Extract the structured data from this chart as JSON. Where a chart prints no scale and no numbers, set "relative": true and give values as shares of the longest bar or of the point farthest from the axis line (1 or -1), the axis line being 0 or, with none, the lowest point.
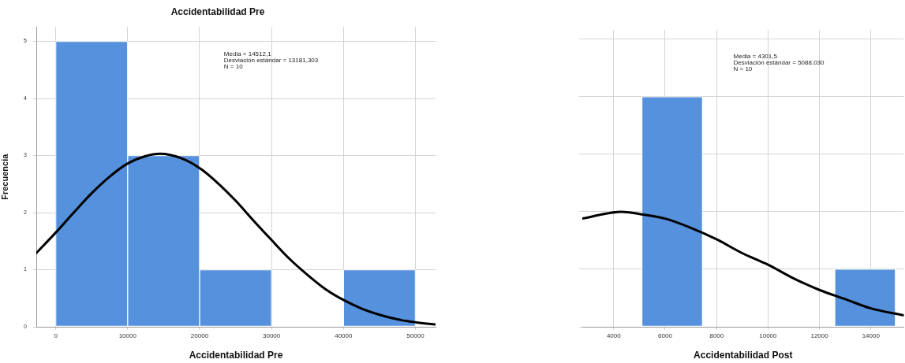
{
  "chart_data": [
    {
      "type": "histogram",
      "title": "Accidentabilidad Pre",
      "xlabel": "Accidentabilidad Pre",
      "ylabel": "Frecuencia",
      "xlim": [
        -2700,
        52800
      ],
      "xticks": [
        0,
        10000,
        20000,
        30000,
        40000,
        50000
      ],
      "ylim": [
        0,
        5.25
      ],
      "yticks": [
        0,
        1,
        2,
        3,
        4,
        5
      ],
      "grid": true,
      "annotations": [
        "Media = 14512,1",
        "Desviación estándar = 13181,303",
        "N = 10"
      ],
      "series": [
        {
          "type": "histogram",
          "bins": [
            0,
            10000,
            20000,
            30000,
            40000,
            50000
          ],
          "values": [
            5,
            3,
            1,
            0,
            1
          ],
          "color": "#5591dc"
        },
        {
          "type": "line",
          "x": [
            -2700,
            0,
            2500,
            5000,
            7500,
            10000,
            12500,
            14500,
            17500,
            20000,
            22500,
            25000,
            27500,
            30000,
            32500,
            35000,
            37500,
            40000,
            42500,
            45000,
            47500,
            50000,
            52800
          ],
          "values": [
            1.29,
            1.65,
            2.0,
            2.34,
            2.63,
            2.86,
            2.99,
            3.03,
            2.95,
            2.78,
            2.52,
            2.21,
            1.86,
            1.52,
            1.19,
            0.91,
            0.66,
            0.47,
            0.32,
            0.21,
            0.13,
            0.08,
            0.04
          ],
          "color": "#000000"
        }
      ]
    },
    {
      "type": "histogram",
      "xlabel": "Accidentabilidad Post",
      "xlim": [
        2780,
        15280
      ],
      "xticks": [
        4000,
        6000,
        8000,
        10000,
        12000,
        14000
      ],
      "relative": true,
      "grid": true,
      "annotations": [
        "Media = 4301,5",
        "Desviación estándar = 5088,030",
        "N = 10"
      ],
      "series": [
        {
          "type": "histogram",
          "bins": [
            5100,
            7450,
            12600,
            14950
          ],
          "values": [
            1,
            0,
            0.25
          ],
          "color": "#5591dc"
        },
        {
          "type": "line",
          "x": [
            2780,
            4300,
            5000,
            6000,
            7000,
            8000,
            9000,
            10000,
            11000,
            12000,
            13000,
            14000,
            15280
          ],
          "values": [
            0.47,
            0.5,
            0.49,
            0.47,
            0.43,
            0.38,
            0.32,
            0.27,
            0.21,
            0.16,
            0.12,
            0.08,
            0.05
          ],
          "color": "#000000"
        }
      ]
    }
  ]
}
